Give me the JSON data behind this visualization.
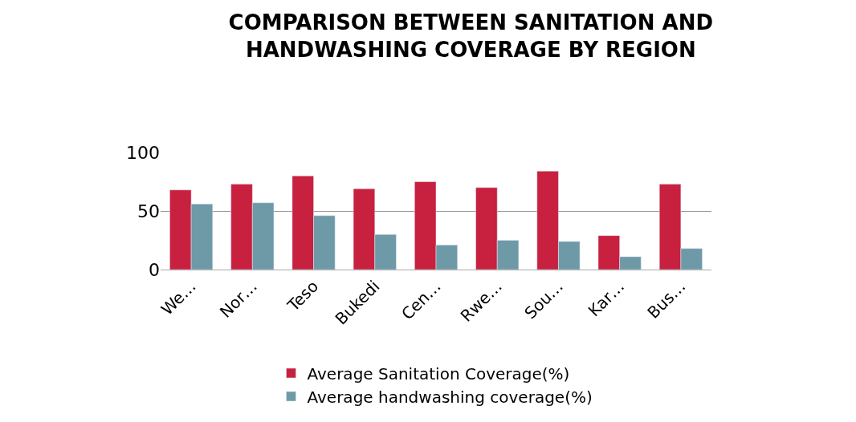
{
  "chart_data": {
    "type": "bar",
    "title": "COMPARISON BETWEEN SANITATION AND HANDWASHING COVERAGE BY REGION",
    "categories": [
      "We…",
      "Nor…",
      "Teso",
      "Bukedi",
      "Cen…",
      "Rwe…",
      "Sou…",
      "Kar…",
      "Bus…"
    ],
    "series": [
      {
        "name": "Average Sanitation Coverage(%)",
        "color": "#c8203f",
        "values": [
          68,
          73,
          80,
          69,
          75,
          70,
          84,
          29,
          73
        ]
      },
      {
        "name": "Average handwashing coverage(%)",
        "color": "#6e9aa8",
        "values": [
          56,
          57,
          46,
          30,
          21,
          25,
          24,
          11,
          18
        ]
      }
    ],
    "ylim": [
      0,
      100
    ],
    "yticks": [
      0,
      50,
      100
    ],
    "grid": "y",
    "legend": "bottom"
  }
}
